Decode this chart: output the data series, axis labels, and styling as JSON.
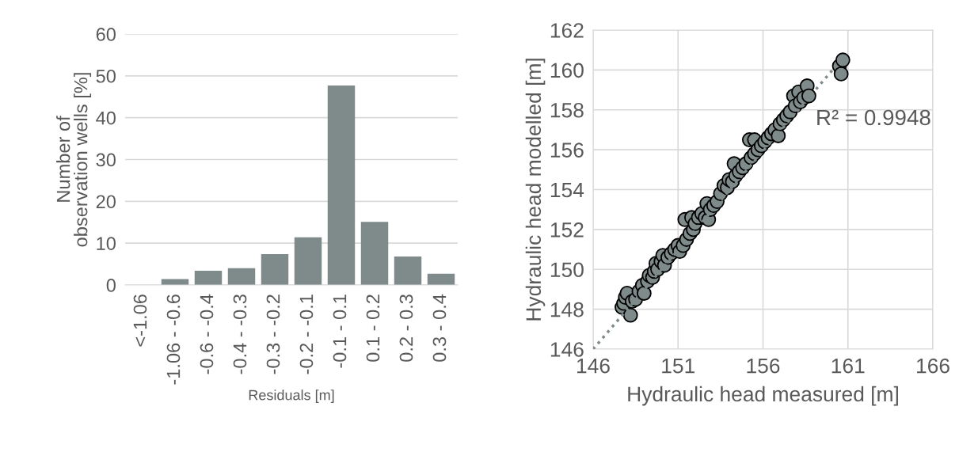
{
  "chart_data": [
    {
      "type": "bar",
      "xlabel": "Residuals [m]",
      "ylabel": "Number of\nobservation wells [%]",
      "categories": [
        "<-1.06",
        "-1.06 - -0.6",
        "-0.6 - -0.4",
        "-0.4 - -0.3",
        "-0.3 - -0.2",
        "-0.2 - -0.1",
        "-0.1 - 0.1",
        "0.1 - 0.2",
        "0.2 - 0.3",
        "0.3 - 0.4"
      ],
      "values": [
        0,
        1.4,
        3.4,
        4.0,
        7.4,
        11.4,
        47.7,
        15.1,
        6.8,
        2.7
      ],
      "color": "#7f8b8a",
      "ylim": [
        0,
        60
      ],
      "yticks": [
        0,
        10,
        20,
        30,
        40,
        50,
        60
      ],
      "grid": "y"
    },
    {
      "type": "scatter",
      "xlabel": "Hydraulic head measured [m]",
      "ylabel": "Hydraulic head modelled [m]",
      "xlim": [
        146,
        166
      ],
      "xticks": [
        146,
        151,
        156,
        161,
        166
      ],
      "ylim": [
        146,
        162
      ],
      "yticks": [
        146,
        148,
        150,
        152,
        154,
        156,
        158,
        160,
        162
      ],
      "grid": true,
      "annotations": [
        "R² = 0.9948"
      ],
      "series": [
        {
          "type": "line",
          "color": "#7f8b8a",
          "line_style": "dotted",
          "x": [
            146,
            160.8
          ],
          "values": [
            146,
            160.7
          ]
        },
        {
          "type": "scatter",
          "color": "#7f8b8a",
          "marker": "circle",
          "x": [
            147.7,
            147.8,
            147.9,
            148.0,
            148.2,
            148.3,
            148.5,
            148.7,
            148.9,
            149.0,
            149.2,
            149.3,
            149.5,
            149.6,
            149.7,
            149.8,
            150.0,
            150.1,
            150.2,
            150.4,
            150.6,
            150.8,
            151.0,
            151.1,
            151.3,
            151.4,
            151.5,
            151.7,
            151.8,
            151.9,
            152.0,
            152.2,
            152.4,
            152.6,
            152.7,
            152.8,
            152.9,
            153.1,
            153.3,
            153.5,
            153.7,
            153.9,
            154.0,
            154.2,
            154.3,
            154.4,
            154.6,
            154.8,
            155.0,
            155.2,
            155.3,
            155.5,
            155.5,
            155.7,
            155.9,
            156.1,
            156.3,
            156.5,
            156.7,
            156.9,
            157.0,
            157.2,
            157.4,
            157.6,
            157.8,
            157.9,
            158.1,
            158.2,
            158.4,
            158.6,
            158.7,
            160.5,
            160.6,
            160.7
          ],
          "values": [
            148.1,
            148.3,
            148.6,
            148.8,
            147.7,
            148.4,
            148.5,
            148.9,
            149.2,
            148.8,
            149.4,
            149.7,
            149.6,
            149.9,
            150.3,
            150.0,
            150.4,
            150.7,
            150.2,
            150.6,
            150.8,
            151.0,
            151.2,
            150.9,
            151.2,
            152.5,
            151.5,
            151.8,
            152.6,
            152.0,
            152.3,
            152.6,
            152.8,
            152.6,
            153.3,
            152.5,
            153.0,
            153.2,
            153.4,
            153.8,
            154.2,
            154.1,
            154.5,
            154.4,
            155.3,
            154.7,
            154.9,
            155.1,
            155.3,
            156.5,
            155.6,
            156.5,
            155.8,
            156.0,
            156.2,
            156.4,
            156.6,
            156.8,
            157.0,
            156.7,
            157.3,
            157.5,
            157.7,
            157.9,
            158.7,
            158.2,
            158.9,
            158.4,
            158.6,
            159.2,
            158.7,
            160.2,
            159.8,
            160.5
          ]
        }
      ]
    }
  ]
}
